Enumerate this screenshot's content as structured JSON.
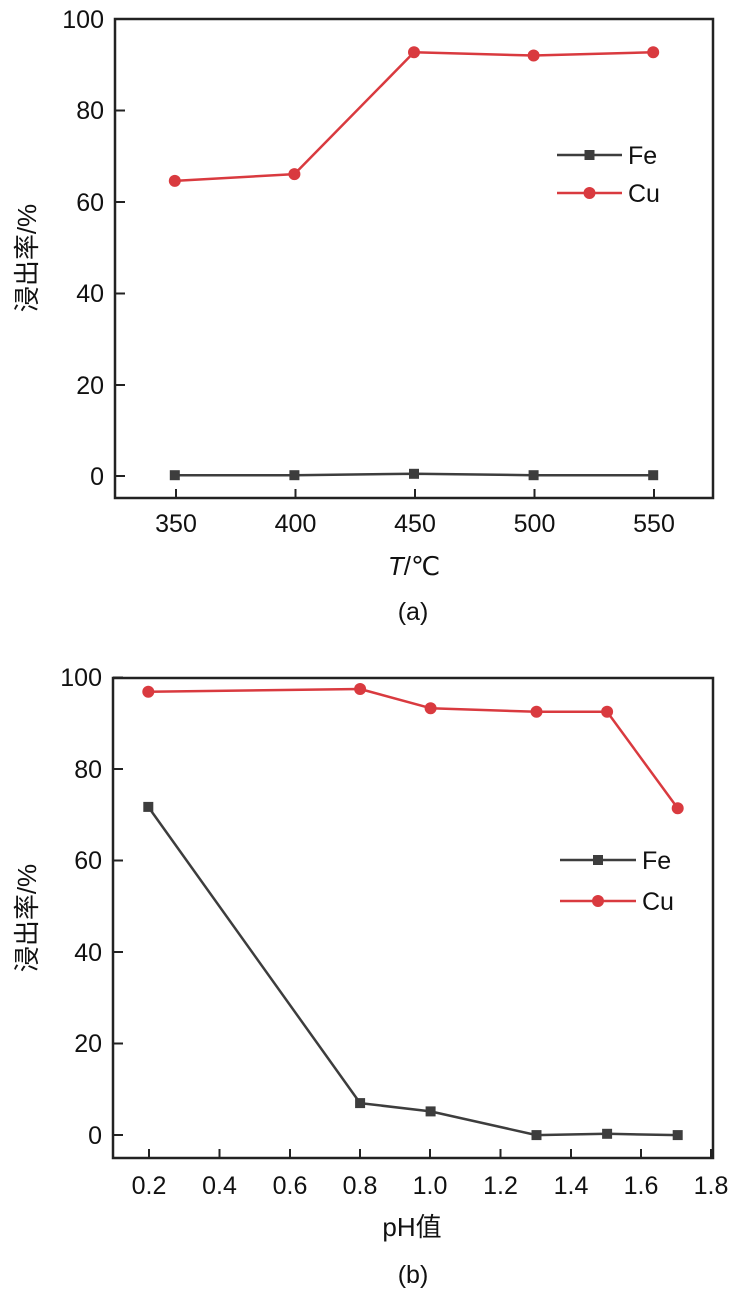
{
  "chart_data": [
    {
      "type": "line",
      "caption": "(a)",
      "xlabel_italic": "T",
      "xlabel_unit": "/℃",
      "ylabel": "浸出率/%",
      "x": [
        350,
        400,
        450,
        500,
        550
      ],
      "xticks": [
        "350",
        "400",
        "450",
        "500",
        "550"
      ],
      "xlim": [
        325,
        575
      ],
      "ylim": [
        -5,
        100
      ],
      "yticks": [
        "0",
        "20",
        "40",
        "60",
        "80",
        "100"
      ],
      "legend_position": "upper-right",
      "series": [
        {
          "name": "Fe",
          "marker": "square",
          "color": "#3d3d3d",
          "values": [
            0,
            0,
            0.3,
            0,
            0
          ]
        },
        {
          "name": "Cu",
          "marker": "circle",
          "color": "#d93a3f",
          "values": [
            64.5,
            66,
            92.7,
            92,
            92.7
          ]
        }
      ]
    },
    {
      "type": "line",
      "caption": "(b)",
      "xlabel_prefix": "pH",
      "xlabel_suffix": "值",
      "ylabel": "浸出率/%",
      "x": [
        0.2,
        0.8,
        1.0,
        1.3,
        1.5,
        1.7
      ],
      "xticks": [
        "0.2",
        "0.4",
        "0.6",
        "0.8",
        "1.0",
        "1.2",
        "1.4",
        "1.6",
        "1.8"
      ],
      "xlim": [
        0.1,
        1.8
      ],
      "ylim": [
        -5,
        100
      ],
      "yticks": [
        "0",
        "20",
        "40",
        "60",
        "80",
        "100"
      ],
      "legend_position": "right",
      "series": [
        {
          "name": "Fe",
          "marker": "square",
          "color": "#3d3d3d",
          "values": [
            71.8,
            7,
            5.2,
            0,
            0.3,
            0
          ]
        },
        {
          "name": "Cu",
          "marker": "circle",
          "color": "#d93a3f",
          "values": [
            97,
            97.6,
            93.4,
            92.6,
            92.6,
            71.5
          ]
        }
      ]
    }
  ]
}
